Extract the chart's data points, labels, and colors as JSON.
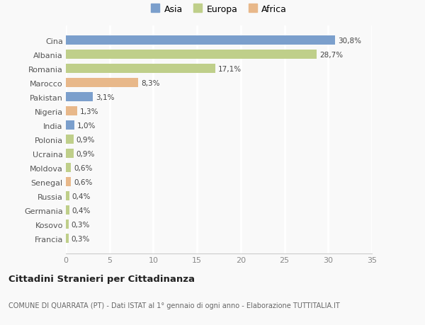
{
  "categories": [
    "Francia",
    "Kosovo",
    "Germania",
    "Russia",
    "Senegal",
    "Moldova",
    "Ucraina",
    "Polonia",
    "India",
    "Nigeria",
    "Pakistan",
    "Marocco",
    "Romania",
    "Albania",
    "Cina"
  ],
  "values": [
    0.3,
    0.3,
    0.4,
    0.4,
    0.6,
    0.6,
    0.9,
    0.9,
    1.0,
    1.3,
    3.1,
    8.3,
    17.1,
    28.7,
    30.8
  ],
  "labels": [
    "0,3%",
    "0,3%",
    "0,4%",
    "0,4%",
    "0,6%",
    "0,6%",
    "0,9%",
    "0,9%",
    "1,0%",
    "1,3%",
    "3,1%",
    "8,3%",
    "17,1%",
    "28,7%",
    "30,8%"
  ],
  "continent": [
    "Europa",
    "Europa",
    "Europa",
    "Europa",
    "Africa",
    "Europa",
    "Europa",
    "Europa",
    "Asia",
    "Africa",
    "Asia",
    "Africa",
    "Europa",
    "Europa",
    "Asia"
  ],
  "colors": {
    "Asia": "#7b9fcc",
    "Europa": "#bfcf8a",
    "Africa": "#e8b88a"
  },
  "xlim": [
    0,
    35
  ],
  "xticks": [
    0,
    5,
    10,
    15,
    20,
    25,
    30,
    35
  ],
  "title": "Cittadini Stranieri per Cittadinanza",
  "subtitle": "COMUNE DI QUARRATA (PT) - Dati ISTAT al 1° gennaio di ogni anno - Elaborazione TUTTITALIA.IT",
  "background_color": "#f9f9f9",
  "grid_color": "#ffffff",
  "bar_height": 0.65
}
